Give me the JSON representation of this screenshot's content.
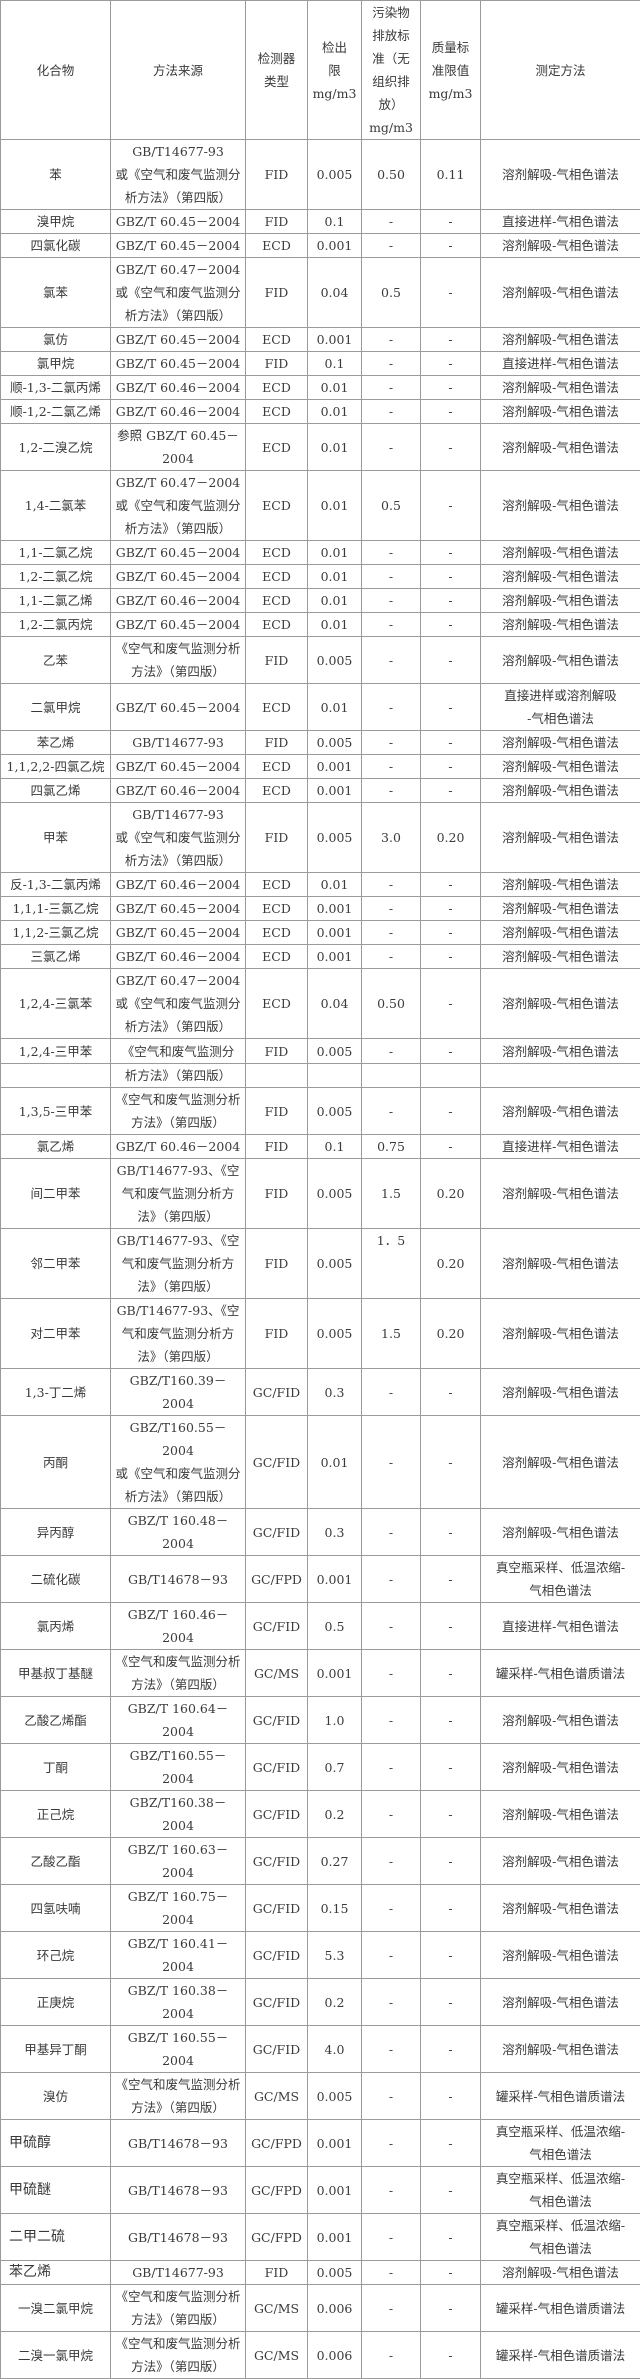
{
  "headers": [
    "化合物",
    "方法来源",
    "检测器\n类型",
    "检出\n限\nmg/m3",
    "污染物\n排放标\n准（无\n组织排\n放）\nmg/m3",
    "质量标\n准限值\nmg/m3",
    "测定方法"
  ],
  "rows": [
    {
      "compound": "苯",
      "source": "GB/T14677-93\n或《空气和废气监测分析方法》（第四版）",
      "detector": "FID",
      "limit": "0.005",
      "emission": "0.50",
      "quality": "0.11",
      "method": "溶剂解吸-气相色谱法"
    },
    {
      "compound": "溴甲烷",
      "source": "GBZ/T 60.45－2004",
      "detector": "FID",
      "limit": "0.1",
      "emission": "-",
      "quality": "-",
      "method": "直接进样-气相色谱法"
    },
    {
      "compound": "四氯化碳",
      "source": "GBZ/T 60.45－2004",
      "detector": "ECD",
      "limit": "0.001",
      "emission": "-",
      "quality": "-",
      "method": "溶剂解吸-气相色谱法"
    },
    {
      "compound": "氯苯",
      "source": "GBZ/T 60.47－2004\n或《空气和废气监测分析方法》（第四版）",
      "detector": "FID",
      "limit": "0.04",
      "emission": "0.5",
      "quality": "-",
      "method": "溶剂解吸-气相色谱法"
    },
    {
      "compound": "氯仿",
      "source": "GBZ/T 60.45－2004",
      "detector": "ECD",
      "limit": "0.001",
      "emission": "-",
      "quality": "-",
      "method": "溶剂解吸-气相色谱法"
    },
    {
      "compound": "氯甲烷",
      "source": "GBZ/T 60.45－2004",
      "detector": "FID",
      "limit": "0.1",
      "emission": "-",
      "quality": "-",
      "method": "直接进样-气相色谱法"
    },
    {
      "compound": "顺-1,3-二氯丙烯",
      "source": "GBZ/T 60.46－2004",
      "detector": "ECD",
      "limit": "0.01",
      "emission": "-",
      "quality": "-",
      "method": "溶剂解吸-气相色谱法"
    },
    {
      "compound": "顺-1,2-二氯乙烯",
      "source": "GBZ/T 60.46－2004",
      "detector": "ECD",
      "limit": "0.01",
      "emission": "-",
      "quality": "-",
      "method": "溶剂解吸-气相色谱法"
    },
    {
      "compound": "1,2-二溴乙烷",
      "source": "参照 GBZ/T 60.45－\n2004",
      "detector": "ECD",
      "limit": "0.01",
      "emission": "-",
      "quality": "-",
      "method": "溶剂解吸-气相色谱法"
    },
    {
      "compound": "1,4-二氯苯",
      "source": "GBZ/T 60.47－2004\n或《空气和废气监测分析方法》（第四版）",
      "detector": "ECD",
      "limit": "0.01",
      "emission": "0.5",
      "quality": "-",
      "method": "溶剂解吸-气相色谱法"
    },
    {
      "compound": "1,1-二氯乙烷",
      "source": "GBZ/T 60.45－2004",
      "detector": "ECD",
      "limit": "0.01",
      "emission": "-",
      "quality": "-",
      "method": "溶剂解吸-气相色谱法"
    },
    {
      "compound": "1,2-二氯乙烷",
      "source": "GBZ/T 60.45－2004",
      "detector": "ECD",
      "limit": "0.01",
      "emission": "-",
      "quality": "-",
      "method": "溶剂解吸-气相色谱法"
    },
    {
      "compound": "1,1-二氯乙烯",
      "source": "GBZ/T 60.46－2004",
      "detector": "ECD",
      "limit": "0.01",
      "emission": "-",
      "quality": "-",
      "method": "溶剂解吸-气相色谱法"
    },
    {
      "compound": "1,2-二氯丙烷",
      "source": "GBZ/T 60.45－2004",
      "detector": "ECD",
      "limit": "0.01",
      "emission": "-",
      "quality": "-",
      "method": "溶剂解吸-气相色谱法"
    },
    {
      "compound": "乙苯",
      "source": "《空气和废气监测分析方法》（第四版）",
      "detector": "FID",
      "limit": "0.005",
      "emission": "-",
      "quality": "-",
      "method": "溶剂解吸-气相色谱法"
    },
    {
      "compound": "二氯甲烷",
      "source": "GBZ/T 60.45－2004",
      "detector": "ECD",
      "limit": "0.01",
      "emission": "-",
      "quality": "-",
      "method": "直接进样或溶剂解吸\n-气相色谱法"
    },
    {
      "compound": "苯乙烯",
      "source": "GB/T14677-93",
      "detector": "FID",
      "limit": "0.005",
      "emission": "-",
      "quality": "-",
      "method": "溶剂解吸-气相色谱法"
    },
    {
      "compound": "1,1,2,2-四氯乙烷",
      "source": "GBZ/T 60.45－2004",
      "detector": "ECD",
      "limit": "0.001",
      "emission": "-",
      "quality": "-",
      "method": "溶剂解吸-气相色谱法"
    },
    {
      "compound": "四氯乙烯",
      "source": "GBZ/T 60.46－2004",
      "detector": "ECD",
      "limit": "0.001",
      "emission": "-",
      "quality": "-",
      "method": "溶剂解吸-气相色谱法"
    },
    {
      "compound": "甲苯",
      "source": "GB/T14677-93\n或《空气和废气监测分析方法》（第四版）",
      "detector": "FID",
      "limit": "0.005",
      "emission": "3.0",
      "quality": "0.20",
      "method": "溶剂解吸-气相色谱法"
    },
    {
      "compound": "反-1,3-二氯丙烯",
      "source": "GBZ/T 60.46－2004",
      "detector": "ECD",
      "limit": "0.01",
      "emission": "-",
      "quality": "-",
      "method": "溶剂解吸-气相色谱法"
    },
    {
      "compound": "1,1,1-三氯乙烷",
      "source": "GBZ/T 60.45－2004",
      "detector": "ECD",
      "limit": "0.001",
      "emission": "-",
      "quality": "-",
      "method": "溶剂解吸-气相色谱法"
    },
    {
      "compound": "1,1,2-三氯乙烷",
      "source": "GBZ/T 60.45－2004",
      "detector": "ECD",
      "limit": "0.001",
      "emission": "-",
      "quality": "-",
      "method": "溶剂解吸-气相色谱法"
    },
    {
      "compound": "三氯乙烯",
      "source": "GBZ/T 60.46－2004",
      "detector": "ECD",
      "limit": "0.001",
      "emission": "-",
      "quality": "-",
      "method": "溶剂解吸-气相色谱法"
    },
    {
      "compound": "1,2,4-三氯苯",
      "source": "GBZ/T 60.47－2004\n或《空气和废气监测分析方法》（第四版）",
      "detector": "ECD",
      "limit": "0.04",
      "emission": "0.50",
      "quality": "-",
      "method": "溶剂解吸-气相色谱法"
    },
    {
      "compound": "1,2,4-三甲苯",
      "source": "《空气和废气监测分",
      "detector": "FID",
      "limit": "0.005",
      "emission": "-",
      "quality": "-",
      "method": "溶剂解吸-气相色谱法"
    },
    {
      "compound": "",
      "source": "析方法》（第四版）",
      "detector": "",
      "limit": "",
      "emission": "",
      "quality": "",
      "method": ""
    },
    {
      "compound": "1,3,5-三甲苯",
      "source": "《空气和废气监测分析方法》（第四版）",
      "detector": "FID",
      "limit": "0.005",
      "emission": "-",
      "quality": "-",
      "method": "溶剂解吸-气相色谱法"
    },
    {
      "compound": "氯乙烯",
      "source": "GBZ/T 60.46－2004",
      "detector": "FID",
      "limit": "0.1",
      "emission": "0.75",
      "quality": "-",
      "method": "直接进样-气相色谱法"
    },
    {
      "compound": "间二甲苯",
      "source": "GB/T14677-93、《空气和废气监测分析方法》（第四版）",
      "detector": "FID",
      "limit": "0.005",
      "emission": "1.5",
      "quality": "0.20",
      "method": "溶剂解吸-气相色谱法"
    },
    {
      "compound": "邻二甲苯",
      "source": "GB/T14677-93、《空气和废气监测分析方法》（第四版）",
      "detector": "FID",
      "limit": "0.005",
      "emission": "1．5",
      "quality": "0.20",
      "method": "溶剂解吸-气相色谱法"
    },
    {
      "compound": "对二甲苯",
      "source": "GB/T14677-93、《空气和废气监测分析方法》（第四版）",
      "detector": "FID",
      "limit": "0.005",
      "emission": "1.5",
      "quality": "0.20",
      "method": "溶剂解吸-气相色谱法"
    },
    {
      "compound": "1,3-丁二烯",
      "source": "GBZ/T160.39－2004",
      "detector": "GC/FID",
      "limit": "0.3",
      "emission": "-",
      "quality": "-",
      "method": "溶剂解吸-气相色谱法"
    },
    {
      "compound": "丙酮",
      "source": "GBZ/T160.55－2004\n或《空气和废气监测分析方法》（第四版）",
      "detector": "GC/FID",
      "limit": "0.01",
      "emission": "-",
      "quality": "-",
      "method": "溶剂解吸-气相色谱法"
    },
    {
      "compound": "异丙醇",
      "source": "GBZ/T 160.48－2004",
      "detector": "GC/FID",
      "limit": "0.3",
      "emission": "-",
      "quality": "-",
      "method": "溶剂解吸-气相色谱法"
    },
    {
      "compound": "二硫化碳",
      "source": "GB/T14678－93",
      "detector": "GC/FPD",
      "limit": "0.001",
      "emission": "-",
      "quality": "-",
      "method": "真空瓶采样、低温浓缩-\n气相色谱法"
    },
    {
      "compound": "氯丙烯",
      "source": "GBZ/T 160.46－2004",
      "detector": "GC/FID",
      "limit": "0.5",
      "emission": "-",
      "quality": "-",
      "method": "直接进样-气相色谱法"
    },
    {
      "compound": "甲基叔丁基醚",
      "source": "《空气和废气监测分析方法》（第四版）",
      "detector": "GC/MS",
      "limit": "0.001",
      "emission": "-",
      "quality": "-",
      "method": "罐采样-气相色谱质谱法"
    },
    {
      "compound": "乙酸乙烯酯",
      "source": "GBZ/T 160.64－2004",
      "detector": "GC/FID",
      "limit": "1.0",
      "emission": "-",
      "quality": "-",
      "method": "溶剂解吸-气相色谱法"
    },
    {
      "compound": "丁酮",
      "source": "GBZ/T160.55－2004",
      "detector": "GC/FID",
      "limit": "0.7",
      "emission": "-",
      "quality": "-",
      "method": "溶剂解吸-气相色谱法"
    },
    {
      "compound": "正己烷",
      "source": "GBZ/T160.38－2004",
      "detector": "GC/FID",
      "limit": "0.2",
      "emission": "-",
      "quality": "-",
      "method": "溶剂解吸-气相色谱法"
    },
    {
      "compound": "乙酸乙酯",
      "source": "GBZ/T 160.63－2004",
      "detector": "GC/FID",
      "limit": "0.27",
      "emission": "-",
      "quality": "-",
      "method": "溶剂解吸-气相色谱法"
    },
    {
      "compound": "四氢呋喃",
      "source": "GBZ/T 160.75－2004",
      "detector": "GC/FID",
      "limit": "0.15",
      "emission": "-",
      "quality": "-",
      "method": "溶剂解吸-气相色谱法"
    },
    {
      "compound": "环己烷",
      "source": "GBZ/T 160.41－2004",
      "detector": "GC/FID",
      "limit": "5.3",
      "emission": "-",
      "quality": "-",
      "method": "溶剂解吸-气相色谱法"
    },
    {
      "compound": "正庚烷",
      "source": "GBZ/T 160.38－2004",
      "detector": "GC/FID",
      "limit": "0.2",
      "emission": "-",
      "quality": "-",
      "method": "溶剂解吸-气相色谱法"
    },
    {
      "compound": "甲基异丁酮",
      "source": "GBZ/T 160.55－2004",
      "detector": "GC/FID",
      "limit": "4.0",
      "emission": "-",
      "quality": "-",
      "method": "溶剂解吸-气相色谱法"
    },
    {
      "compound": "溴仿",
      "source": "《空气和废气监测分析方法》（第四版）",
      "detector": "GC/MS",
      "limit": "0.005",
      "emission": "-",
      "quality": "-",
      "method": "罐采样-气相色谱质谱法"
    },
    {
      "compound": "甲硫醇",
      "source": "GB/T14678－93",
      "detector": "GC/FPD",
      "limit": "0.001",
      "emission": "-",
      "quality": "-",
      "method": "真空瓶采样、低温浓缩-\n气相色谱法"
    },
    {
      "compound": "甲硫醚",
      "source": "GB/T14678－93",
      "detector": "GC/FPD",
      "limit": "0.001",
      "emission": "-",
      "quality": "-",
      "method": "真空瓶采样、低温浓缩-\n气相色谱法"
    },
    {
      "compound": "二甲二硫",
      "source": "GB/T14678－93",
      "detector": "GC/FPD",
      "limit": "0.001",
      "emission": "-",
      "quality": "-",
      "method": "真空瓶采样、低温浓缩-\n气相色谱法"
    },
    {
      "compound": "苯乙烯",
      "source": "GB/T14677-93",
      "detector": "FID",
      "limit": "0.005",
      "emission": "-",
      "quality": "-",
      "method": "溶剂解吸-气相色谱法"
    },
    {
      "compound": "一溴二氯甲烷",
      "source": "《空气和废气监测分析方法》（第四版）",
      "detector": "GC/MS",
      "limit": "0.006",
      "emission": "-",
      "quality": "-",
      "method": "罐采样-气相色谱质谱法"
    },
    {
      "compound": "二溴一氯甲烷",
      "source": "《空气和废气监测分析方法》（第四版）",
      "detector": "GC/MS",
      "limit": "0.006",
      "emission": "-",
      "quality": "-",
      "method": "罐采样-气相色谱质谱法"
    }
  ]
}
